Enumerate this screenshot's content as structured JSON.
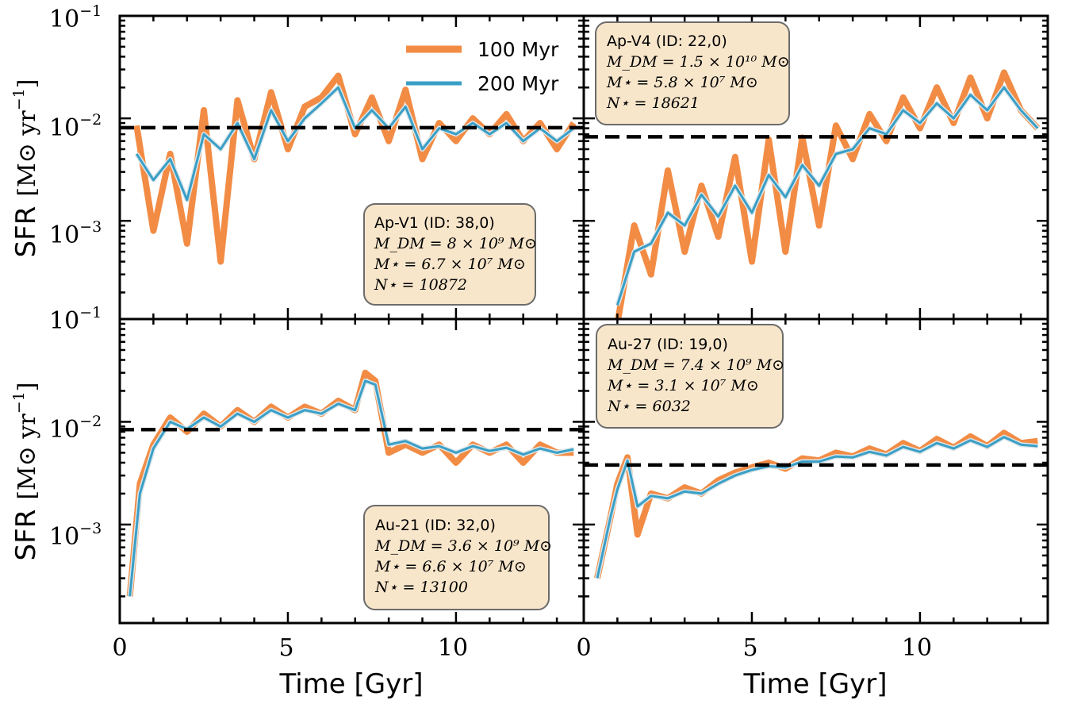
{
  "colors": {
    "series_100": "#f28c45",
    "series_200": "#3a9fc6",
    "median": "#000000",
    "box_fill": "#f8e6cb",
    "box_stroke": "#6b6b6b"
  },
  "legend": {
    "items": [
      {
        "label": "100 Myr",
        "color": "#f28c45"
      },
      {
        "label": "200 Myr",
        "color": "#3a9fc6"
      }
    ]
  },
  "axes": {
    "xlabel": "Time [Gyr]",
    "ylabel": "SFR [M⊙ yr⁻¹]",
    "ylabel_main": "SFR",
    "ylabel_unit": "[M⊙ yr",
    "ylabel_exp": "−1",
    "ylabel_close": "]",
    "x_ticks": [
      "0",
      "5",
      "10"
    ],
    "y_ticks_top": [
      {
        "base": "10",
        "exp": "−1"
      },
      {
        "base": "10",
        "exp": "−2"
      },
      {
        "base": "10",
        "exp": "−3"
      }
    ],
    "y_ticks_bottom": [
      {
        "base": "10",
        "exp": "−1"
      },
      {
        "base": "10",
        "exp": "−2"
      },
      {
        "base": "10",
        "exp": "−3"
      }
    ]
  },
  "panels": [
    {
      "name": "Ap-V1",
      "title": "Ap-V1 (ID: 38,0)",
      "lines": [
        "M_DM = 8 × 10⁹ M⊙",
        "M⋆ = 6.7 × 10⁷ M⊙",
        "N⋆ = 10872"
      ],
      "median": 0.0081
    },
    {
      "name": "Ap-V4",
      "title": "Ap-V4 (ID: 22,0)",
      "lines": [
        "M_DM = 1.5 × 10¹⁰ M⊙",
        "M⋆ = 5.8 × 10⁷ M⊙",
        "N⋆ = 18621"
      ],
      "median": 0.0066
    },
    {
      "name": "Au-21",
      "title": "Au-21 (ID: 32,0)",
      "lines": [
        "M_DM = 3.6 × 10⁹ M⊙",
        "M⋆ = 6.6 × 10⁷ M⊙",
        "N⋆ = 13100"
      ],
      "median": 0.0084
    },
    {
      "name": "Au-27",
      "title": "Au-27 (ID: 19,0)",
      "lines": [
        "M_DM = 7.4 × 10⁹ M⊙",
        "M⋆ = 3.1 × 10⁷ M⊙",
        "N⋆ = 6032"
      ],
      "median": 0.0038
    }
  ],
  "chart_data": [
    {
      "type": "line",
      "panel": "Ap-V1",
      "xlabel": "",
      "ylabel": "SFR [M⊙ yr⁻¹]",
      "xlim": [
        0,
        13.8
      ],
      "ylim": [
        0.00011,
        0.1
      ],
      "y_scale": "log",
      "series": [
        {
          "name": "100 Myr",
          "x": [
            0.5,
            1.0,
            1.5,
            2.0,
            2.5,
            3.0,
            3.5,
            4.0,
            4.5,
            5.0,
            5.5,
            6.0,
            6.5,
            7.0,
            7.5,
            8.0,
            8.5,
            9.0,
            9.5,
            10.0,
            10.5,
            11.0,
            11.5,
            12.0,
            12.5,
            13.0,
            13.5
          ],
          "y": [
            0.0085,
            0.0008,
            0.0045,
            0.0006,
            0.012,
            0.0004,
            0.015,
            0.004,
            0.018,
            0.005,
            0.013,
            0.016,
            0.026,
            0.007,
            0.016,
            0.006,
            0.019,
            0.004,
            0.009,
            0.006,
            0.01,
            0.007,
            0.011,
            0.006,
            0.009,
            0.005,
            0.009
          ]
        },
        {
          "name": "200 Myr",
          "x": [
            0.5,
            1.0,
            1.5,
            2.0,
            2.5,
            3.0,
            3.5,
            4.0,
            4.5,
            5.0,
            5.5,
            6.0,
            6.5,
            7.0,
            7.5,
            8.0,
            8.5,
            9.0,
            9.5,
            10.0,
            10.5,
            11.0,
            11.5,
            12.0,
            12.5,
            13.0,
            13.5
          ],
          "y": [
            0.0045,
            0.0025,
            0.004,
            0.0016,
            0.007,
            0.005,
            0.009,
            0.004,
            0.012,
            0.006,
            0.01,
            0.014,
            0.02,
            0.008,
            0.012,
            0.008,
            0.013,
            0.005,
            0.008,
            0.007,
            0.009,
            0.007,
            0.009,
            0.006,
            0.008,
            0.006,
            0.008
          ]
        }
      ]
    },
    {
      "type": "line",
      "panel": "Ap-V4",
      "xlabel": "",
      "ylabel": "",
      "xlim": [
        0,
        13.8
      ],
      "ylim": [
        0.00011,
        0.1
      ],
      "y_scale": "log",
      "series": [
        {
          "name": "100 Myr",
          "x": [
            1.0,
            1.5,
            2.0,
            2.5,
            3.0,
            3.5,
            4.0,
            4.5,
            5.0,
            5.5,
            6.0,
            6.5,
            7.0,
            7.5,
            8.0,
            8.5,
            9.0,
            9.5,
            10.0,
            10.5,
            11.0,
            11.5,
            12.0,
            12.5,
            13.0,
            13.5
          ],
          "y": [
            0.0001,
            0.0009,
            0.0003,
            0.0031,
            0.0005,
            0.0022,
            0.0007,
            0.0042,
            0.0004,
            0.0062,
            0.0005,
            0.0065,
            0.0009,
            0.0085,
            0.004,
            0.011,
            0.006,
            0.016,
            0.008,
            0.02,
            0.009,
            0.025,
            0.01,
            0.028,
            0.012,
            0.008
          ]
        },
        {
          "name": "200 Myr",
          "x": [
            1.0,
            1.5,
            2.0,
            2.5,
            3.0,
            3.5,
            4.0,
            4.5,
            5.0,
            5.5,
            6.0,
            6.5,
            7.0,
            7.5,
            8.0,
            8.5,
            9.0,
            9.5,
            10.0,
            10.5,
            11.0,
            11.5,
            12.0,
            12.5,
            13.0,
            13.5
          ],
          "y": [
            0.00015,
            0.0005,
            0.0006,
            0.0012,
            0.0009,
            0.0018,
            0.0011,
            0.0022,
            0.0012,
            0.0028,
            0.0017,
            0.0035,
            0.0022,
            0.0045,
            0.005,
            0.008,
            0.007,
            0.012,
            0.009,
            0.014,
            0.01,
            0.017,
            0.012,
            0.02,
            0.012,
            0.008
          ]
        }
      ]
    },
    {
      "type": "line",
      "panel": "Au-21",
      "xlabel": "Time [Gyr]",
      "ylabel": "SFR [M⊙ yr⁻¹]",
      "xlim": [
        0,
        13.8
      ],
      "ylim": [
        0.00011,
        0.1
      ],
      "y_scale": "log",
      "series": [
        {
          "name": "100 Myr",
          "x": [
            0.3,
            0.6,
            1.0,
            1.5,
            2.0,
            2.5,
            3.0,
            3.5,
            4.0,
            4.5,
            5.0,
            5.5,
            6.0,
            6.5,
            7.0,
            7.3,
            7.6,
            8.0,
            8.5,
            9.0,
            9.5,
            10.0,
            10.5,
            11.0,
            11.5,
            12.0,
            12.5,
            13.0,
            13.5
          ],
          "y": [
            0.0002,
            0.0025,
            0.006,
            0.011,
            0.008,
            0.012,
            0.009,
            0.013,
            0.01,
            0.014,
            0.011,
            0.014,
            0.012,
            0.016,
            0.013,
            0.03,
            0.025,
            0.005,
            0.006,
            0.005,
            0.006,
            0.004,
            0.006,
            0.005,
            0.006,
            0.004,
            0.006,
            0.005,
            0.005
          ]
        },
        {
          "name": "200 Myr",
          "x": [
            0.3,
            0.6,
            1.0,
            1.5,
            2.0,
            2.5,
            3.0,
            3.5,
            4.0,
            4.5,
            5.0,
            5.5,
            6.0,
            6.5,
            7.0,
            7.3,
            7.6,
            8.0,
            8.5,
            9.0,
            9.5,
            10.0,
            10.5,
            11.0,
            11.5,
            12.0,
            12.5,
            13.0,
            13.5
          ],
          "y": [
            0.0002,
            0.002,
            0.0055,
            0.01,
            0.0085,
            0.011,
            0.009,
            0.012,
            0.01,
            0.013,
            0.011,
            0.013,
            0.012,
            0.015,
            0.013,
            0.025,
            0.023,
            0.006,
            0.0065,
            0.0055,
            0.0058,
            0.005,
            0.0058,
            0.0052,
            0.0056,
            0.0048,
            0.0055,
            0.005,
            0.0054
          ]
        }
      ]
    },
    {
      "type": "line",
      "panel": "Au-27",
      "xlabel": "Time [Gyr]",
      "ylabel": "",
      "xlim": [
        0,
        13.8
      ],
      "ylim": [
        0.00011,
        0.1
      ],
      "y_scale": "log",
      "series": [
        {
          "name": "100 Myr",
          "x": [
            0.4,
            0.8,
            1.0,
            1.3,
            1.6,
            2.0,
            2.5,
            3.0,
            3.5,
            4.0,
            4.5,
            5.0,
            5.5,
            6.0,
            6.5,
            7.0,
            7.5,
            8.0,
            8.5,
            9.0,
            9.5,
            10.0,
            10.5,
            11.0,
            11.5,
            12.0,
            12.5,
            13.0,
            13.5
          ],
          "y": [
            0.0003,
            0.0012,
            0.0025,
            0.0045,
            0.0008,
            0.002,
            0.0018,
            0.0023,
            0.002,
            0.0027,
            0.0032,
            0.0036,
            0.004,
            0.0035,
            0.0044,
            0.0042,
            0.005,
            0.0046,
            0.0055,
            0.0048,
            0.0062,
            0.0052,
            0.0068,
            0.0056,
            0.0072,
            0.0058,
            0.0078,
            0.0062,
            0.0065
          ]
        },
        {
          "name": "200 Myr",
          "x": [
            0.4,
            0.8,
            1.0,
            1.3,
            1.6,
            2.0,
            2.5,
            3.0,
            3.5,
            4.0,
            4.5,
            5.0,
            5.5,
            6.0,
            6.5,
            7.0,
            7.5,
            8.0,
            8.5,
            9.0,
            9.5,
            10.0,
            10.5,
            11.0,
            11.5,
            12.0,
            12.5,
            13.0,
            13.5
          ],
          "y": [
            0.0003,
            0.0012,
            0.0022,
            0.0042,
            0.0015,
            0.0019,
            0.0018,
            0.0021,
            0.002,
            0.0025,
            0.003,
            0.0034,
            0.0037,
            0.0036,
            0.0041,
            0.0041,
            0.0046,
            0.0045,
            0.0051,
            0.0047,
            0.0057,
            0.0051,
            0.0062,
            0.0055,
            0.0066,
            0.0057,
            0.0071,
            0.006,
            0.0058
          ]
        }
      ]
    }
  ]
}
